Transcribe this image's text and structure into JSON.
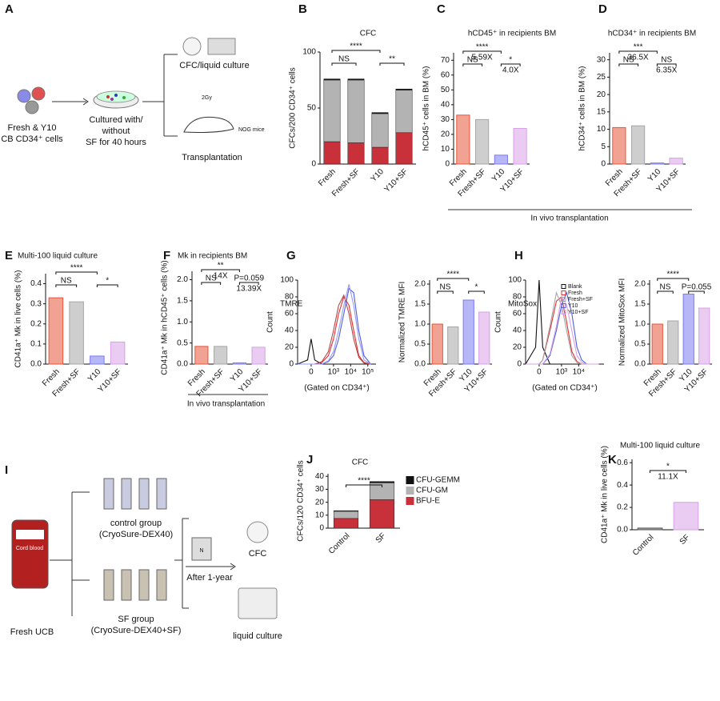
{
  "panel_labels": [
    "A",
    "B",
    "C",
    "D",
    "E",
    "F",
    "G",
    "H",
    "I",
    "J",
    "K"
  ],
  "diagram_a": {
    "input": [
      "Fresh & Y10",
      "CB CD34⁺ cells"
    ],
    "culture": [
      "Cultured with/",
      "without",
      "SF for 40 hours"
    ],
    "readout": "CFC/liquid culture",
    "dose": "2Gy",
    "mice": "NOG mice",
    "transplant": "Transplantation"
  },
  "diagram_i": {
    "bag_label": "Cord blood",
    "source": "Fresh UCB",
    "control": [
      "control group",
      "(CryoSure-DEX40)"
    ],
    "sf": [
      "SF group",
      "(CryoSure-DEX40+SF)"
    ],
    "bottle": "N",
    "storage": "After 1-year",
    "cfc": "CFC",
    "liquid": "liquid culture"
  },
  "transplant_label": "In vivo transplantation",
  "chart_data": [
    {
      "type": "stacked-bar",
      "title": "CFC",
      "ylabel": "CFCs/200 CD34⁺ cells",
      "categories": [
        "Fresh",
        "Fresh+SF",
        "Y10",
        "Y10+SF"
      ],
      "series": [
        {
          "color": "#c8313a",
          "values": [
            20,
            19,
            15,
            28
          ]
        },
        {
          "color": "#b3b3b3",
          "values": [
            55,
            56,
            30,
            38
          ]
        },
        {
          "color": "#111111",
          "values": [
            1,
            1,
            1,
            1
          ]
        }
      ],
      "ylim": [
        0,
        100
      ],
      "yticks": [
        0,
        50,
        100
      ],
      "annotations": [
        {
          "text": "NS",
          "compare": [
            0,
            1
          ]
        },
        {
          "text": "****",
          "compare": [
            0,
            2
          ]
        },
        {
          "text": "**",
          "compare": [
            2,
            3
          ]
        }
      ]
    },
    {
      "type": "bar",
      "title": "hCD45⁺ in recipients BM",
      "ylabel": "hCD45⁺ cells in BM (%)",
      "categories": [
        "Fresh",
        "Fresh+SF",
        "Y10",
        "Y10+SF"
      ],
      "values": [
        33,
        30,
        6,
        24
      ],
      "colors": [
        "#e8553b",
        "#a6a6a6",
        "#7b7bf2",
        "#d8a0e6"
      ],
      "ylim": [
        0,
        75
      ],
      "yticks": [
        0,
        10,
        20,
        30,
        40,
        50,
        60,
        70
      ],
      "annotations": [
        {
          "text": "NS",
          "compare": [
            0,
            1
          ]
        },
        {
          "text": "****",
          "compare": [
            0,
            2
          ],
          "note": "5.59X"
        },
        {
          "text": "*",
          "compare": [
            2,
            3
          ],
          "note": "4.0X"
        }
      ]
    },
    {
      "type": "bar",
      "title": "hCD34⁺ in recipients BM",
      "ylabel": "hCD34⁺ cells in BM (%)",
      "categories": [
        "Fresh",
        "Fresh+SF",
        "Y10",
        "Y10+SF"
      ],
      "values": [
        10.5,
        11,
        0.3,
        1.7
      ],
      "colors": [
        "#e8553b",
        "#a6a6a6",
        "#7b7bf2",
        "#d8a0e6"
      ],
      "ylim": [
        0,
        32
      ],
      "yticks": [
        0,
        5,
        10,
        15,
        20,
        25,
        30
      ],
      "annotations": [
        {
          "text": "NS",
          "compare": [
            0,
            1
          ]
        },
        {
          "text": "***",
          "compare": [
            0,
            2
          ],
          "note": "36.5X"
        },
        {
          "text": "NS",
          "compare": [
            2,
            3
          ],
          "note": "6.35X"
        }
      ]
    },
    {
      "type": "bar",
      "title": "Multi-100 liquid culture",
      "ylabel": "CD41a⁺ Mk in live cells (%)",
      "categories": [
        "Fresh",
        "Fresh+SF",
        "Y10",
        "Y10+SF"
      ],
      "values": [
        0.33,
        0.31,
        0.04,
        0.11
      ],
      "colors": [
        "#e8553b",
        "#a6a6a6",
        "#7b7bf2",
        "#d8a0e6"
      ],
      "ylim": [
        0,
        0.45
      ],
      "yticks": [
        {
          "value": 0,
          "label": "0.0"
        },
        0.1,
        0.2,
        0.3,
        0.4
      ],
      "annotations": [
        {
          "text": "NS",
          "compare": [
            0,
            1
          ]
        },
        {
          "text": "****",
          "compare": [
            0,
            2
          ]
        },
        {
          "text": "*",
          "compare": [
            2,
            3
          ]
        }
      ]
    },
    {
      "type": "bar",
      "title": "Mk in recipients BM",
      "ylabel": "CD41a⁺ Mk in hCD45⁺ cells (%)",
      "categories": [
        "Fresh",
        "Fresh+SF",
        "Y10",
        "Y10+SF"
      ],
      "values": [
        0.42,
        0.42,
        0.03,
        0.4
      ],
      "colors": [
        "#e8553b",
        "#a6a6a6",
        "#7b7bf2",
        "#d8a0e6"
      ],
      "ylim": [
        0,
        2.2
      ],
      "yticks": [
        {
          "value": 0,
          "label": "0.0"
        },
        0.5,
        {
          "value": 1,
          "label": "1.0"
        },
        1.5,
        {
          "value": 2,
          "label": "2.0"
        }
      ],
      "footer": "In vivo transplantation",
      "annotations": [
        {
          "text": "NS",
          "compare": [
            0,
            1
          ]
        },
        {
          "text": "**",
          "compare": [
            0,
            2
          ],
          "note": "14X"
        },
        {
          "text": "P=0.059",
          "compare": [
            2,
            3
          ],
          "note": "13.39X"
        }
      ]
    },
    {
      "type": "histogram-overlay",
      "title": "TMRE",
      "ylabel": "Count",
      "xlabel": "(Gated on CD34⁺)",
      "xscale": "biexponential",
      "x": [
        -300,
        -50,
        0,
        50,
        200,
        500,
        1000,
        2000,
        4000,
        8000,
        15000,
        30000,
        60000,
        150000
      ],
      "series": [
        {
          "color": "#111111",
          "values": [
            0,
            5,
            30,
            5,
            0,
            0,
            0,
            0,
            0,
            0,
            0,
            0,
            0,
            0
          ]
        },
        {
          "color": "#e03030",
          "values": [
            0,
            0,
            0,
            0,
            2,
            10,
            30,
            60,
            80,
            70,
            40,
            10,
            2,
            0
          ]
        },
        {
          "color": "#b84848",
          "values": [
            0,
            0,
            0,
            0,
            3,
            15,
            40,
            70,
            82,
            60,
            30,
            8,
            1,
            0
          ]
        },
        {
          "color": "#5060e0",
          "values": [
            0,
            0,
            0,
            0,
            0,
            3,
            10,
            30,
            60,
            90,
            85,
            40,
            10,
            0
          ]
        },
        {
          "color": "#9a9af2",
          "values": [
            0,
            0,
            0,
            0,
            0,
            4,
            15,
            40,
            70,
            95,
            70,
            30,
            5,
            0
          ]
        }
      ],
      "xlim": [
        -300,
        300000
      ],
      "xticks": [
        0,
        {
          "value": 1000,
          "label": "10³"
        },
        {
          "value": 10000,
          "label": "10⁴"
        },
        {
          "value": 100000,
          "label": "10⁵"
        }
      ],
      "ylim": [
        0,
        100
      ],
      "yticks": [
        0,
        20,
        40,
        60,
        80,
        100
      ]
    },
    {
      "type": "bar",
      "ylabel": "Normalized TMRE MFI",
      "categories": [
        "Fresh",
        "Fresh+SF",
        "Y10",
        "Y10+SF"
      ],
      "values": [
        1.0,
        0.93,
        1.6,
        1.3
      ],
      "colors": [
        "#e8553b",
        "#a6a6a6",
        "#7b7bf2",
        "#d8a0e6"
      ],
      "ylim": [
        0,
        2.1
      ],
      "yticks": [
        {
          "value": 0,
          "label": "0.0"
        },
        0.5,
        {
          "value": 1,
          "label": "1.0"
        },
        1.5,
        {
          "value": 2,
          "label": "2.0"
        }
      ],
      "annotations": [
        {
          "text": "NS",
          "compare": [
            0,
            1
          ]
        },
        {
          "text": "****",
          "compare": [
            0,
            2
          ]
        },
        {
          "text": "*",
          "compare": [
            2,
            3
          ]
        }
      ]
    },
    {
      "type": "histogram-overlay",
      "title": "MitoSox",
      "ylabel": "Count",
      "xlabel": "(Gated on CD34⁺)",
      "xscale": "biexponential",
      "x": [
        -300,
        -50,
        0,
        50,
        200,
        500,
        1000,
        2000,
        4000,
        8000,
        15000,
        30000,
        60000,
        150000
      ],
      "series": [
        {
          "name": "Blank",
          "color": "#111111",
          "values": [
            0,
            20,
            100,
            20,
            0,
            0,
            0,
            0,
            0,
            0,
            0,
            0,
            0,
            0
          ]
        },
        {
          "name": "Fresh",
          "color": "#e03030",
          "values": [
            0,
            0,
            0,
            5,
            40,
            75,
            80,
            50,
            15,
            3,
            0,
            0,
            0,
            0
          ]
        },
        {
          "name": "Fresh+SF",
          "color": "#a6a6a6",
          "values": [
            0,
            0,
            0,
            5,
            45,
            85,
            70,
            40,
            10,
            2,
            0,
            0,
            0,
            0
          ]
        },
        {
          "name": "Y10",
          "color": "#5060e0",
          "values": [
            0,
            0,
            0,
            0,
            10,
            40,
            70,
            85,
            60,
            20,
            5,
            0,
            0,
            0
          ]
        },
        {
          "name": "Y10+SF",
          "color": "#d8a0e6",
          "values": [
            0,
            0,
            0,
            0,
            12,
            45,
            80,
            70,
            40,
            10,
            2,
            0,
            0,
            0
          ]
        }
      ],
      "xlim": [
        -300,
        300000
      ],
      "xticks": [
        0,
        {
          "value": 1000,
          "label": "10³"
        },
        {
          "value": 10000,
          "label": "10⁴"
        }
      ],
      "ylim": [
        0,
        100
      ],
      "yticks": [
        0,
        20,
        40,
        60,
        80,
        100
      ]
    },
    {
      "type": "bar",
      "ylabel": "Normalized MitoSox MFI",
      "categories": [
        "Fresh",
        "Fresh+SF",
        "Y10",
        "Y10+SF"
      ],
      "values": [
        1.0,
        1.08,
        1.75,
        1.4
      ],
      "colors": [
        "#e8553b",
        "#a6a6a6",
        "#7b7bf2",
        "#d8a0e6"
      ],
      "ylim": [
        0,
        2.1
      ],
      "yticks": [
        {
          "value": 0,
          "label": "0.0"
        },
        0.5,
        {
          "value": 1,
          "label": "1.0"
        },
        1.5,
        {
          "value": 2,
          "label": "2.0"
        }
      ],
      "annotations": [
        {
          "text": "NS",
          "compare": [
            0,
            1
          ]
        },
        {
          "text": "****",
          "compare": [
            0,
            2
          ]
        },
        {
          "text": "P=0.055",
          "compare": [
            2,
            3
          ]
        }
      ]
    },
    {
      "type": "stacked-bar",
      "title": "CFC",
      "ylabel": "CFCs/120 CD34⁺ cells",
      "categories": [
        "Control",
        "SF"
      ],
      "series": [
        {
          "name": "BFU-E",
          "color": "#c8313a",
          "values": [
            7.5,
            22
          ]
        },
        {
          "name": "CFU-GM",
          "color": "#b3b3b3",
          "values": [
            5.5,
            13
          ]
        },
        {
          "name": "CFU-GEMM",
          "color": "#111111",
          "values": [
            0.5,
            1
          ]
        }
      ],
      "ylim": [
        0,
        42
      ],
      "yticks": [
        0,
        10,
        20,
        30,
        40
      ],
      "annotations": [
        {
          "text": "****",
          "compare": [
            0,
            1
          ]
        }
      ]
    },
    {
      "type": "bar",
      "title": "Multi-100 liquid culture",
      "ylabel": "CD41a⁺ Mk in live cells (%)",
      "categories": [
        "Control",
        "SF"
      ],
      "values": [
        0.015,
        0.245
      ],
      "colors": [
        "#555555",
        "#d8a0e6"
      ],
      "ylim": [
        0,
        0.63
      ],
      "yticks": [
        {
          "value": 0,
          "label": "0.0"
        },
        0.2,
        0.4,
        0.6
      ],
      "annotations": [
        {
          "text": "*",
          "compare": [
            0,
            1
          ],
          "note": "11.1X"
        }
      ]
    }
  ]
}
